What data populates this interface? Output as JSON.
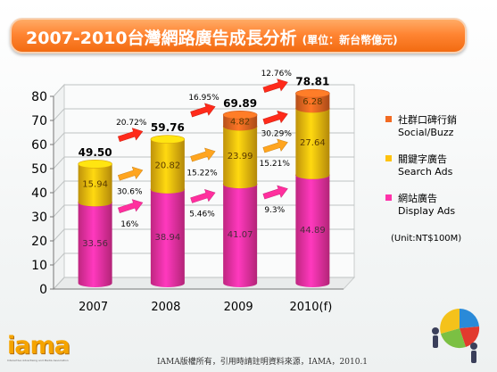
{
  "header": {
    "title": "2007-2010台灣網路廣告成長分析",
    "unit_note": "(單位：新台幣億元)"
  },
  "chart_data": {
    "type": "bar",
    "stacked": true,
    "categories": [
      "2007",
      "2008",
      "2009",
      "2010(f)"
    ],
    "ylim": [
      0,
      80
    ],
    "yticks": [
      0,
      10,
      20,
      30,
      40,
      50,
      60,
      70,
      80
    ],
    "series": [
      {
        "name": "網站廣告 Display Ads",
        "name_zh": "網站廣告",
        "name_en": "Display Ads",
        "color": "#ff33aa",
        "values": [
          33.56,
          38.94,
          41.07,
          44.89
        ]
      },
      {
        "name": "關鍵字廣告 Search Ads",
        "name_zh": "關鍵字廣告",
        "name_en": "Search Ads",
        "color": "#ffc20e",
        "values": [
          15.94,
          20.82,
          23.99,
          27.64
        ]
      },
      {
        "name": "社群口碑行銷 Social/Buzz",
        "name_zh": "社群口碑行銷",
        "name_en": "Social/Buzz",
        "color": "#f26a22",
        "values": [
          0,
          0,
          4.82,
          6.28
        ]
      }
    ],
    "totals": [
      49.5,
      59.76,
      69.89,
      78.81
    ],
    "total_labels": [
      "49.50",
      "59.76",
      "69.89",
      "78.81"
    ],
    "segment_labels": [
      [
        "33.56",
        "38.94",
        "41.07",
        "44.89"
      ],
      [
        "15.94",
        "20.82",
        "23.99",
        "27.64"
      ],
      [
        "",
        "",
        "4.82",
        "6.28"
      ]
    ],
    "growth": {
      "total": [
        "20.72%",
        "16.95%",
        "12.76%"
      ],
      "search": [
        "30.6%",
        "15.22%",
        "15.21%"
      ],
      "display": [
        "16%",
        "5.46%",
        "9.3%"
      ],
      "social": [
        "30.29%"
      ]
    },
    "unit_label": "(Unit:NT$100M)",
    "legend_position": "right",
    "grid": true
  },
  "footer": {
    "copyright": "IAMA版權所有，引用時請註明資料來源，IAMA，2010.1",
    "logo_text": "iama",
    "logo_tagline": "Interactive Advertising and Media Association"
  },
  "colors": {
    "title_orange": "#f26b11",
    "arrow_red": "#ff2a1a",
    "arrow_orange": "#ffa51f",
    "arrow_pink": "#ff2f9e"
  }
}
